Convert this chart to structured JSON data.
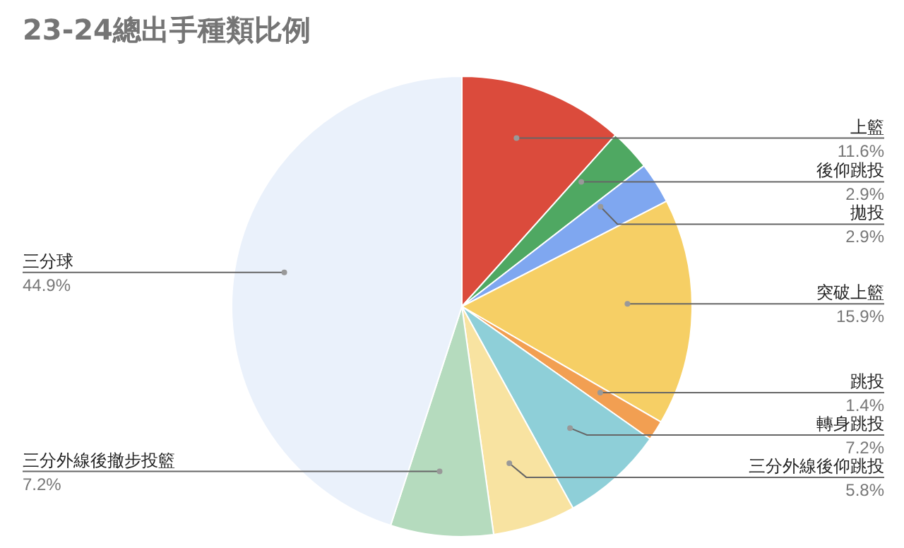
{
  "chart_data": {
    "type": "pie",
    "title": "23-24總出手種類比例",
    "categories": [
      "上籃",
      "後仰跳投",
      "拋投",
      "突破上籃",
      "跳投",
      "轉身跳投",
      "三分外線後仰跳投",
      "三分外線後撤步投籃",
      "三分球"
    ],
    "values": [
      11.6,
      2.9,
      2.9,
      15.9,
      1.4,
      7.2,
      5.8,
      7.2,
      44.9
    ],
    "colors": [
      "#db4b3c",
      "#4fa862",
      "#7fa7f0",
      "#f6cf65",
      "#f29f52",
      "#8ecfd8",
      "#f8e3a1",
      "#b5dbbe",
      "#eaf1fb"
    ],
    "value_labels": [
      "11.6%",
      "2.9%",
      "2.9%",
      "15.9%",
      "1.4%",
      "7.2%",
      "5.8%",
      "7.2%",
      "44.9%"
    ]
  }
}
